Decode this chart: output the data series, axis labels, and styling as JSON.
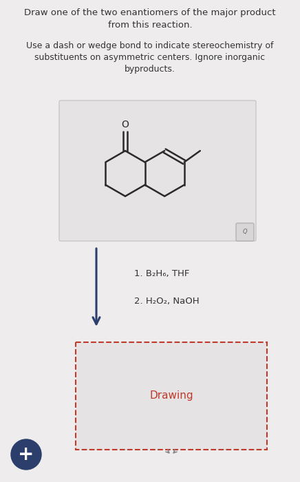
{
  "title_line1": "Draw one of the two enantiomers of the major product",
  "title_line2": "from this reaction.",
  "subtitle_line1": "Use a dash or wedge bond to indicate stereochemistry of",
  "subtitle_line2": "substituents on asymmetric centers. Ignore inorganic",
  "subtitle_line3": "byproducts.",
  "reagent1": "1. B₂H₆, THF",
  "reagent2": "2. H₂O₂, NaOH",
  "drawing_label": "Drawing",
  "bg_color": "#eeecec",
  "text_color": "#333333",
  "drawing_label_color": "#c0392b",
  "arrow_color": "#2c3e6b",
  "mol_box_bg": "#e5e3e3",
  "mol_box_edge": "#c0bebe",
  "draw_box_bg": "#e5e3e3",
  "plus_circle_color": "#2c3e6b",
  "plus_text_color": "#ffffff",
  "bond_color": "#2a2a2a"
}
